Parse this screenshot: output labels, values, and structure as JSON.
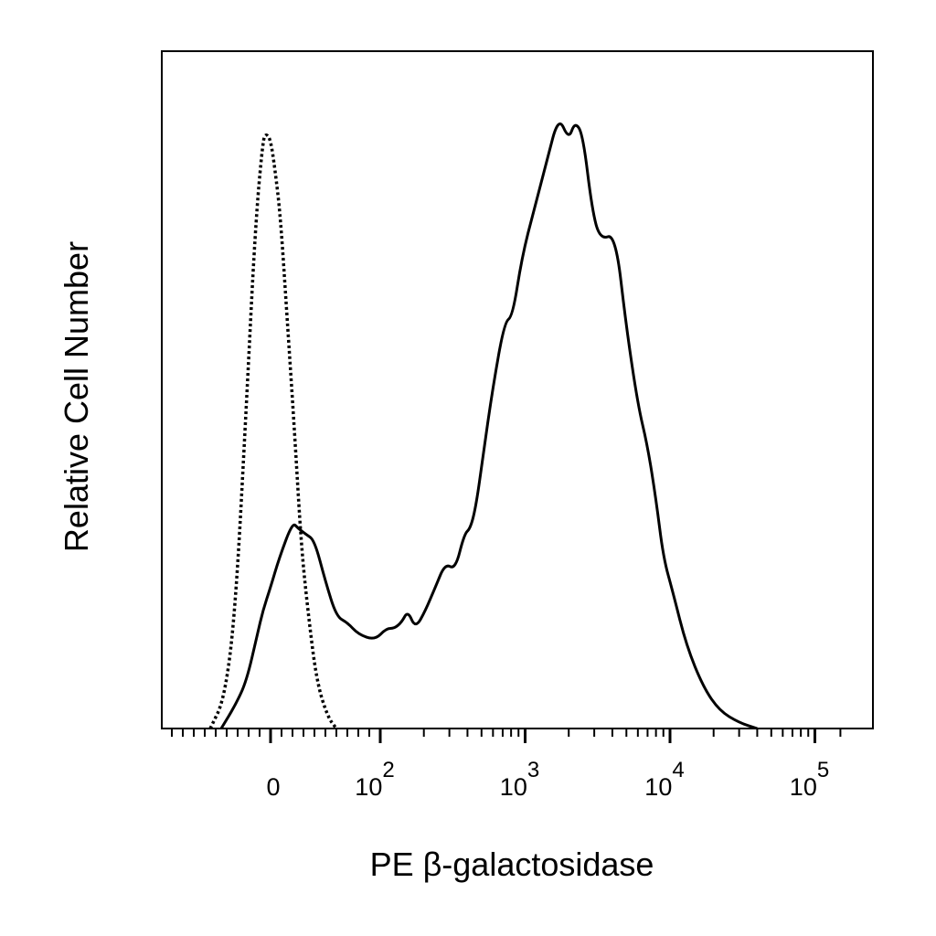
{
  "chart_data": {
    "type": "line",
    "title": "",
    "xlabel": "PE β-galactosidase",
    "ylabel": "Relative Cell Number",
    "x_scale": "biexponential",
    "xlim": [
      -100,
      150000
    ],
    "ylim": [
      0,
      1.15
    ],
    "grid": false,
    "legend": "none",
    "x_tick_labels": [
      {
        "value": 0,
        "base": "0",
        "exp": ""
      },
      {
        "value": 100,
        "base": "10",
        "exp": "2"
      },
      {
        "value": 1000,
        "base": "10",
        "exp": "3"
      },
      {
        "value": 10000,
        "base": "10",
        "exp": "4"
      },
      {
        "value": 100000,
        "base": "10",
        "exp": "5"
      }
    ],
    "series": [
      {
        "style": "dotted",
        "color": "#000000",
        "points": [
          [
            -55,
            0.0
          ],
          [
            -42,
            0.05
          ],
          [
            -32,
            0.2
          ],
          [
            -22,
            0.55
          ],
          [
            -14,
            0.85
          ],
          [
            -7,
            1.0
          ],
          [
            -4,
            1.01
          ],
          [
            0,
            1.0
          ],
          [
            4,
            0.95
          ],
          [
            9,
            0.87
          ],
          [
            15,
            0.7
          ],
          [
            22,
            0.5
          ],
          [
            28,
            0.31
          ],
          [
            34,
            0.2
          ],
          [
            42,
            0.08
          ],
          [
            52,
            0.02
          ],
          [
            60,
            0.0
          ]
        ]
      },
      {
        "style": "solid",
        "color": "#000000",
        "points": [
          [
            -45,
            0.0
          ],
          [
            -32,
            0.04
          ],
          [
            -22,
            0.08
          ],
          [
            -12,
            0.16
          ],
          [
            -7,
            0.2
          ],
          [
            0,
            0.24
          ],
          [
            8,
            0.29
          ],
          [
            20,
            0.35
          ],
          [
            25,
            0.34
          ],
          [
            32,
            0.33
          ],
          [
            40,
            0.32
          ],
          [
            50,
            0.25
          ],
          [
            60,
            0.19
          ],
          [
            70,
            0.18
          ],
          [
            80,
            0.16
          ],
          [
            95,
            0.15
          ],
          [
            110,
            0.17
          ],
          [
            125,
            0.17
          ],
          [
            140,
            0.18
          ],
          [
            155,
            0.2
          ],
          [
            175,
            0.17
          ],
          [
            205,
            0.2
          ],
          [
            240,
            0.24
          ],
          [
            280,
            0.28
          ],
          [
            330,
            0.27
          ],
          [
            380,
            0.33
          ],
          [
            420,
            0.34
          ],
          [
            460,
            0.38
          ],
          [
            510,
            0.46
          ],
          [
            600,
            0.58
          ],
          [
            720,
            0.69
          ],
          [
            820,
            0.7
          ],
          [
            950,
            0.8
          ],
          [
            1150,
            0.88
          ],
          [
            1400,
            0.96
          ],
          [
            1700,
            1.04
          ],
          [
            2000,
            1.0
          ],
          [
            2200,
            1.03
          ],
          [
            2500,
            1.01
          ],
          [
            2900,
            0.88
          ],
          [
            3300,
            0.83
          ],
          [
            4200,
            0.84
          ],
          [
            5000,
            0.68
          ],
          [
            6000,
            0.55
          ],
          [
            7000,
            0.48
          ],
          [
            8000,
            0.39
          ],
          [
            9000,
            0.29
          ],
          [
            10500,
            0.23
          ],
          [
            13000,
            0.14
          ],
          [
            17000,
            0.07
          ],
          [
            22000,
            0.03
          ],
          [
            30000,
            0.01
          ],
          [
            40000,
            0.0
          ]
        ]
      }
    ]
  }
}
